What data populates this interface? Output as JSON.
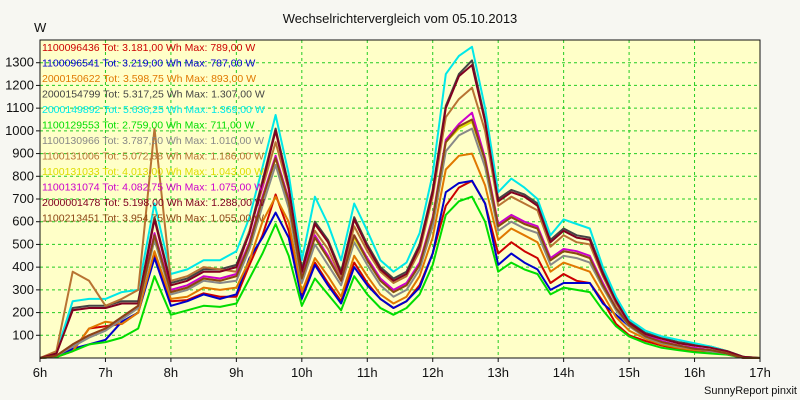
{
  "chart_data": {
    "type": "line",
    "title": "Wechselrichtervergleich vom 05.10.2013",
    "ylabel": "W",
    "xlabel": "",
    "xlim": [
      6,
      17
    ],
    "ylim": [
      0,
      1400
    ],
    "grid": true,
    "background": "#ffffc8",
    "grid_color": "#22cc22",
    "legend_position": "top-left",
    "footer": "SunnyReport pinxit",
    "x_ticks": [
      "6h",
      "7h",
      "8h",
      "9h",
      "10h",
      "11h",
      "12h",
      "13h",
      "14h",
      "15h",
      "16h",
      "17h"
    ],
    "y_ticks": [
      "100",
      "200",
      "300",
      "400",
      "500",
      "600",
      "700",
      "800",
      "900",
      "1000",
      "1100",
      "1200",
      "1300"
    ],
    "x": [
      6.0,
      6.25,
      6.5,
      6.75,
      7.0,
      7.25,
      7.5,
      7.75,
      8.0,
      8.25,
      8.5,
      8.75,
      9.0,
      9.2,
      9.4,
      9.6,
      9.8,
      10.0,
      10.2,
      10.4,
      10.6,
      10.8,
      11.0,
      11.2,
      11.4,
      11.6,
      11.8,
      12.0,
      12.2,
      12.4,
      12.6,
      12.8,
      13.0,
      13.2,
      13.4,
      13.6,
      13.8,
      14.0,
      14.2,
      14.4,
      14.6,
      14.8,
      15.0,
      15.25,
      15.5,
      15.75,
      16.0,
      16.25,
      16.5,
      16.75,
      17.0
    ],
    "series": [
      {
        "name": "1100096436 Tot: 3.181,00 Wh Max: 789,00 W",
        "color": "#cc0000",
        "values": [
          0,
          5,
          30,
          130,
          140,
          150,
          200,
          460,
          250,
          255,
          285,
          270,
          270,
          410,
          540,
          720,
          560,
          270,
          420,
          330,
          250,
          420,
          330,
          260,
          220,
          250,
          320,
          460,
          670,
          750,
          780,
          680,
          460,
          510,
          470,
          440,
          330,
          370,
          340,
          330,
          250,
          150,
          100,
          75,
          55,
          40,
          30,
          30,
          20,
          0,
          0
        ]
      },
      {
        "name": "1100096541 Tot: 3.219,00 Wh Max: 787,00 W",
        "color": "#0000cc",
        "values": [
          0,
          5,
          40,
          60,
          80,
          160,
          200,
          440,
          230,
          250,
          280,
          260,
          280,
          440,
          530,
          640,
          530,
          260,
          410,
          320,
          240,
          400,
          320,
          260,
          220,
          250,
          310,
          460,
          730,
          770,
          780,
          680,
          410,
          460,
          420,
          390,
          300,
          330,
          330,
          330,
          240,
          190,
          140,
          100,
          60,
          50,
          35,
          30,
          20,
          0,
          0
        ]
      },
      {
        "name": "2000150622 Tot: 3.598,75 Wh Max: 893,00 W",
        "color": "#e07800",
        "values": [
          0,
          5,
          30,
          130,
          160,
          150,
          200,
          470,
          260,
          270,
          310,
          300,
          310,
          430,
          600,
          710,
          600,
          290,
          440,
          360,
          270,
          450,
          360,
          280,
          240,
          270,
          360,
          530,
          830,
          890,
          900,
          760,
          520,
          570,
          540,
          510,
          380,
          420,
          400,
          380,
          280,
          180,
          120,
          85,
          60,
          45,
          35,
          30,
          20,
          0,
          0
        ]
      },
      {
        "name": "2000154799 Tot: 5.317,25 Wh Max: 1.307,00 W",
        "color": "#444444",
        "values": [
          0,
          20,
          220,
          230,
          230,
          250,
          250,
          620,
          330,
          350,
          390,
          390,
          410,
          560,
          780,
          1010,
          760,
          390,
          600,
          520,
          380,
          620,
          500,
          400,
          350,
          380,
          500,
          740,
          1110,
          1250,
          1310,
          1050,
          700,
          740,
          720,
          680,
          520,
          570,
          540,
          530,
          380,
          260,
          160,
          110,
          90,
          70,
          60,
          50,
          30,
          5,
          0
        ]
      },
      {
        "name": "2000149892 Tot: 5.636,25 Wh Max: 1.369,00 W",
        "color": "#00e8e8",
        "values": [
          0,
          25,
          250,
          260,
          260,
          290,
          300,
          680,
          370,
          390,
          430,
          430,
          470,
          620,
          840,
          1070,
          810,
          430,
          710,
          590,
          430,
          680,
          560,
          430,
          380,
          420,
          550,
          810,
          1250,
          1330,
          1370,
          1100,
          730,
          790,
          750,
          700,
          540,
          610,
          590,
          570,
          400,
          270,
          170,
          120,
          95,
          80,
          65,
          50,
          30,
          5,
          0
        ]
      },
      {
        "name": "1100129553 Tot: 2.759,00 Wh Max: 711,00 W",
        "color": "#00dd00",
        "values": [
          0,
          5,
          30,
          60,
          70,
          90,
          130,
          360,
          190,
          210,
          230,
          225,
          240,
          350,
          460,
          590,
          450,
          230,
          350,
          280,
          210,
          360,
          280,
          220,
          190,
          220,
          280,
          410,
          630,
          690,
          710,
          600,
          380,
          420,
          390,
          370,
          280,
          310,
          300,
          290,
          210,
          140,
          95,
          65,
          45,
          35,
          25,
          20,
          15,
          0,
          0
        ]
      },
      {
        "name": "1100130966 Tot: 3.787,50 Wh Max: 1.010,00 W",
        "color": "#888888",
        "values": [
          0,
          10,
          50,
          90,
          120,
          170,
          220,
          520,
          280,
          300,
          340,
          330,
          340,
          480,
          670,
          850,
          660,
          330,
          500,
          410,
          320,
          510,
          410,
          320,
          270,
          300,
          390,
          580,
          910,
          980,
          1010,
          840,
          560,
          600,
          570,
          550,
          410,
          450,
          440,
          420,
          310,
          210,
          140,
          90,
          65,
          50,
          40,
          30,
          20,
          0,
          0
        ]
      },
      {
        "name": "1100131006 Tot: 5.072,88 Wh Max: 1.186,00 W",
        "color": "#b87333",
        "values": [
          0,
          30,
          380,
          340,
          230,
          260,
          300,
          1010,
          340,
          360,
          400,
          390,
          380,
          560,
          750,
          950,
          740,
          370,
          560,
          480,
          350,
          580,
          470,
          380,
          330,
          360,
          470,
          710,
          1060,
          1140,
          1190,
          1000,
          670,
          710,
          680,
          650,
          490,
          540,
          510,
          500,
          360,
          240,
          150,
          105,
          85,
          65,
          55,
          45,
          25,
          5,
          0
        ]
      },
      {
        "name": "1100131033 Tot: 4.013,00 Wh Max: 1.043,00 W",
        "color": "#dddd00",
        "values": [
          0,
          10,
          60,
          100,
          130,
          180,
          230,
          540,
          290,
          310,
          350,
          340,
          360,
          500,
          700,
          880,
          690,
          350,
          530,
          440,
          340,
          530,
          430,
          340,
          290,
          320,
          410,
          610,
          950,
          1010,
          1040,
          870,
          580,
          620,
          590,
          570,
          430,
          470,
          460,
          440,
          320,
          220,
          145,
          95,
          70,
          55,
          40,
          35,
          20,
          0,
          0
        ]
      },
      {
        "name": "1100131074 Tot: 4.082,75 Wh Max: 1.075,00 W",
        "color": "#cc00cc",
        "values": [
          0,
          10,
          60,
          100,
          130,
          180,
          230,
          550,
          300,
          320,
          360,
          350,
          370,
          510,
          710,
          890,
          700,
          360,
          540,
          450,
          340,
          540,
          440,
          350,
          300,
          330,
          420,
          620,
          960,
          1030,
          1080,
          880,
          590,
          630,
          600,
          580,
          440,
          480,
          470,
          450,
          330,
          220,
          150,
          100,
          75,
          55,
          45,
          35,
          20,
          0,
          0
        ]
      },
      {
        "name": "2000001478 Tot: 5.198,00 Wh Max: 1.288,00 W",
        "color": "#800020",
        "values": [
          0,
          20,
          210,
          220,
          220,
          240,
          240,
          610,
          320,
          340,
          380,
          380,
          400,
          550,
          770,
          1000,
          750,
          380,
          590,
          510,
          370,
          610,
          490,
          390,
          340,
          370,
          490,
          730,
          1100,
          1240,
          1290,
          1040,
          690,
          730,
          710,
          670,
          510,
          560,
          530,
          520,
          370,
          250,
          155,
          105,
          85,
          65,
          55,
          45,
          30,
          5,
          0
        ]
      },
      {
        "name": "1100213451 Tot: 3.954,75 Wh Max: 1.055,00 W",
        "color": "#8b4513",
        "values": [
          0,
          10,
          60,
          100,
          130,
          180,
          230,
          540,
          290,
          310,
          350,
          340,
          360,
          500,
          700,
          880,
          690,
          350,
          530,
          440,
          340,
          540,
          430,
          340,
          290,
          320,
          410,
          610,
          950,
          1020,
          1050,
          870,
          580,
          620,
          590,
          570,
          430,
          470,
          460,
          440,
          320,
          220,
          145,
          95,
          70,
          55,
          40,
          35,
          20,
          0,
          0
        ]
      }
    ]
  }
}
